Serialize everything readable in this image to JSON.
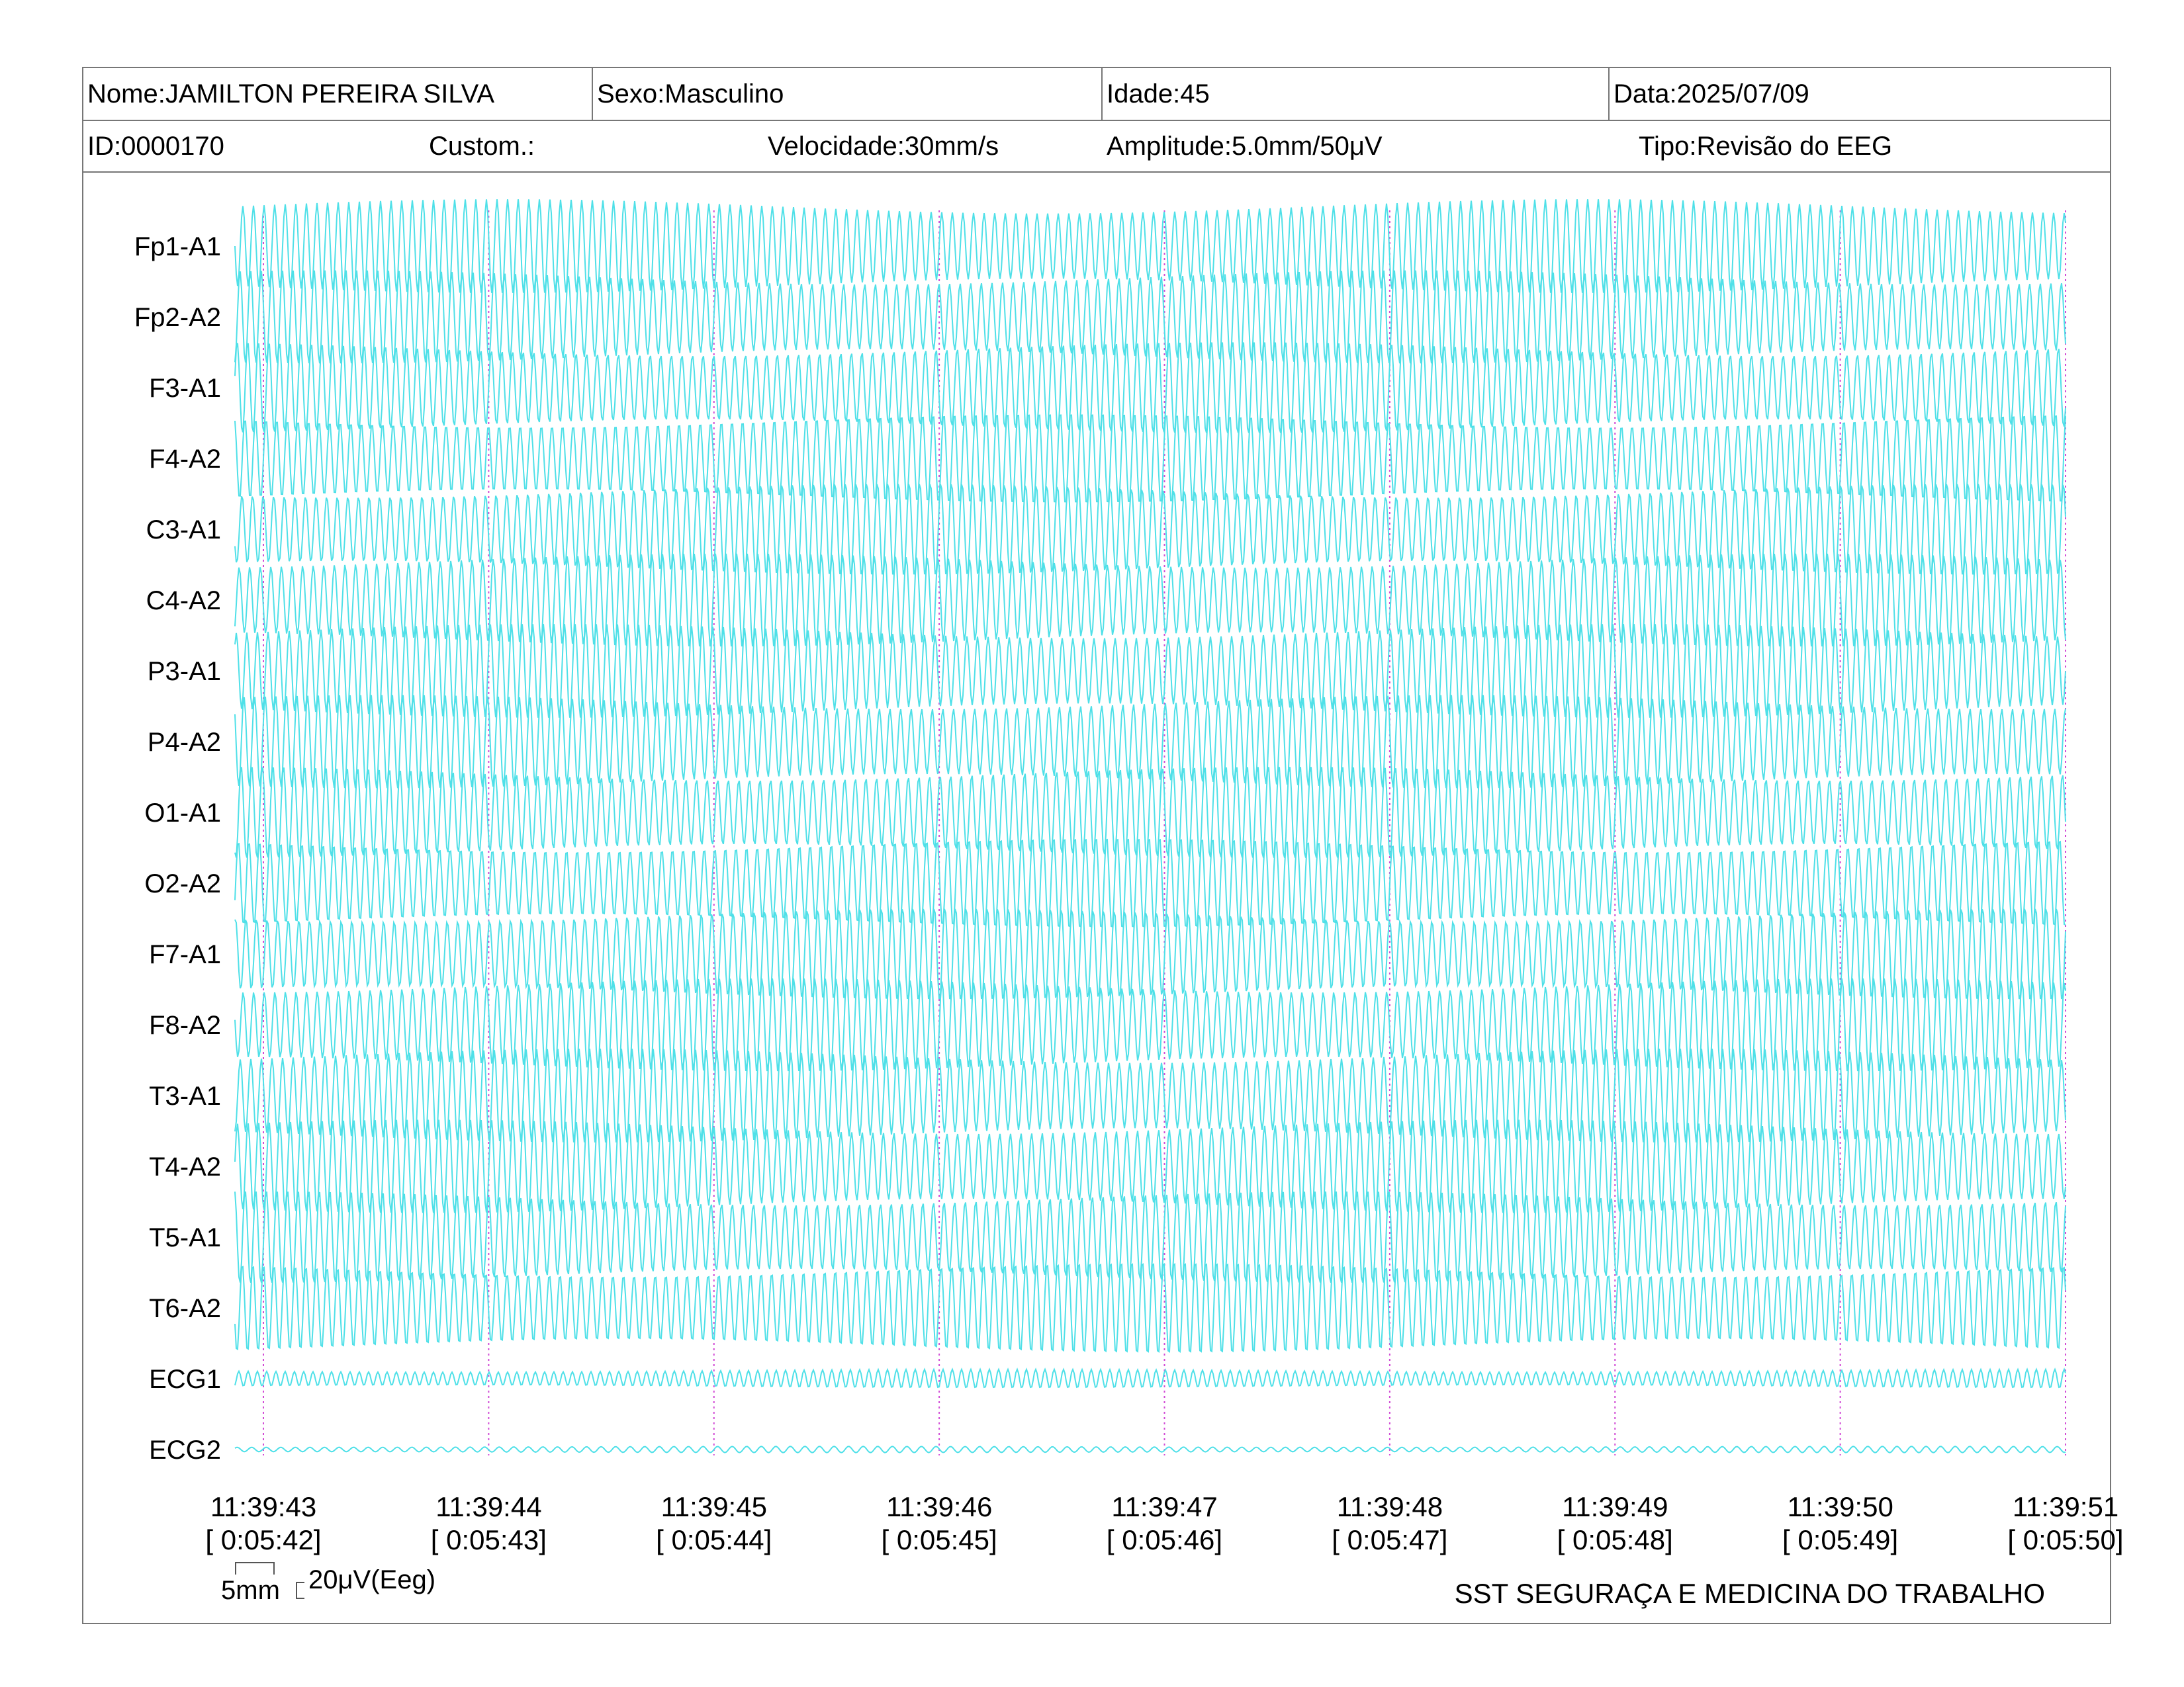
{
  "header": {
    "nome": "Nome:JAMILTON PEREIRA SILVA",
    "sexo": "Sexo:Masculino",
    "idade": "Idade:45",
    "data": "Data:2025/07/09",
    "id": "ID:0000170",
    "custom": "Custom.:",
    "velocidade": "Velocidade:30mm/s",
    "amplitude": "Amplitude:5.0mm/50μV",
    "tipo": "Tipo:Revisão do EEG"
  },
  "scale": {
    "time_label": "5mm",
    "amp_label": "20μV(Eeg)"
  },
  "footer": "SST SEGURAÇA E MEDICINA DO TRABALHO",
  "colors": {
    "trace": "#4fe0e8",
    "gridline": "#d24bd6",
    "border": "#777777"
  },
  "chart_data": {
    "type": "line",
    "channels": [
      "Fp1-A1",
      "Fp2-A2",
      "F3-A1",
      "F4-A2",
      "C3-A1",
      "C4-A2",
      "P3-A1",
      "P4-A2",
      "O1-A1",
      "O2-A2",
      "F7-A1",
      "F8-A2",
      "T3-A1",
      "T4-A2",
      "T5-A1",
      "T6-A2",
      "ECG1",
      "ECG2"
    ],
    "time_ticks": [
      "11:39:43",
      "11:39:44",
      "11:39:45",
      "11:39:46",
      "11:39:47",
      "11:39:48",
      "11:39:49",
      "11:39:50",
      "11:39:51"
    ],
    "elapsed_ticks": [
      "[ 0:05:42]",
      "[ 0:05:43]",
      "[ 0:05:44]",
      "[ 0:05:45]",
      "[ 0:05:46]",
      "[ 0:05:47]",
      "[ 0:05:48]",
      "[ 0:05:49]",
      "[ 0:05:50]"
    ],
    "grid": "vertical-dashed-per-second"
  }
}
